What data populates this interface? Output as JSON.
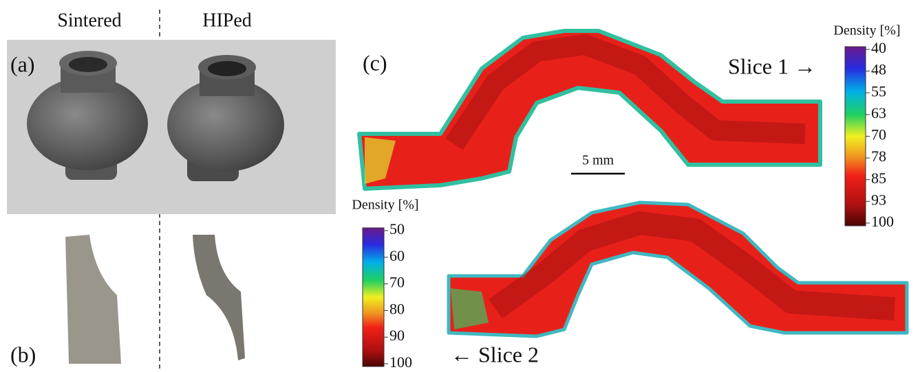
{
  "header": {
    "left_label": "Sintered",
    "right_label": "HIPed"
  },
  "panels": {
    "a": "(a)",
    "b": "(b)",
    "c": "(c)"
  },
  "scale_bar": "5 mm",
  "slices": {
    "slice1": "Slice 1 →",
    "slice2": "← Slice 2"
  },
  "colorbars": [
    {
      "title": "Density [%]",
      "lim": [
        40,
        100
      ],
      "ticks": [
        40,
        {
          "value": 47.5,
          "label": "48"
        },
        55,
        {
          "value": 62.5,
          "label": "63"
        },
        70,
        {
          "value": 77.5,
          "label": "78"
        },
        85,
        {
          "value": 92.5,
          "label": "93"
        },
        100
      ]
    },
    {
      "title": "Density [%]",
      "lim": [
        50,
        100
      ],
      "ticks": [
        50,
        60,
        70,
        80,
        90,
        100
      ]
    }
  ]
}
